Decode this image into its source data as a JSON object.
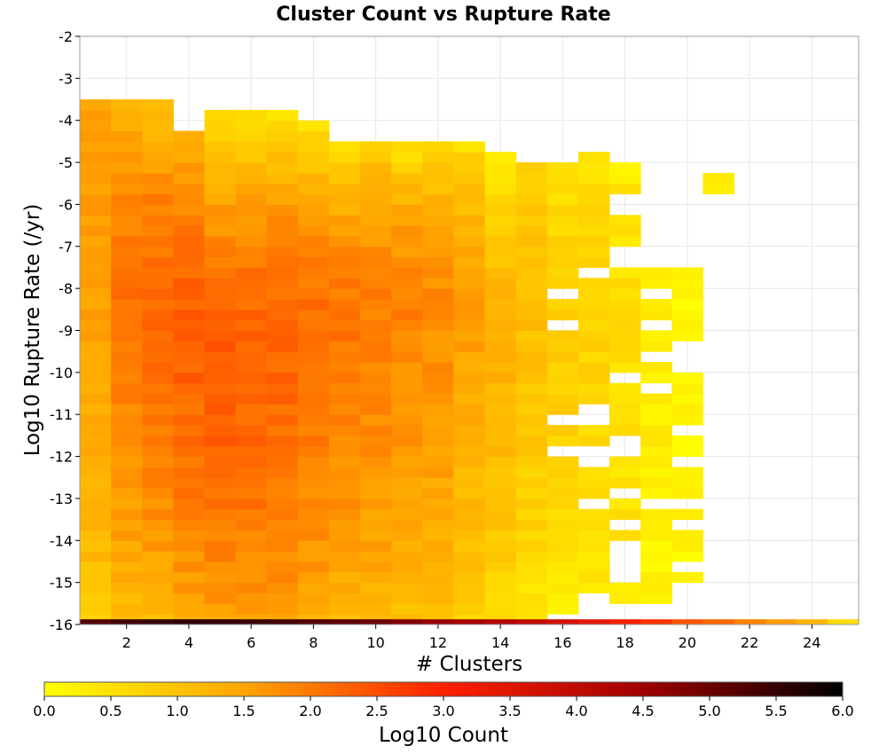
{
  "chart_data": {
    "type": "heatmap",
    "title": "Cluster Count vs Rupture Rate",
    "xlabel": "# Clusters",
    "ylabel": "Log10 Rupture Rate (/yr)",
    "xlim": [
      0.5,
      25.5
    ],
    "ylim": [
      -16,
      -2
    ],
    "x_ticks": [
      2,
      4,
      6,
      8,
      10,
      12,
      14,
      16,
      18,
      20,
      22,
      24
    ],
    "y_ticks": [
      -2,
      -3,
      -4,
      -5,
      -6,
      -7,
      -8,
      -9,
      -10,
      -11,
      -12,
      -13,
      -14,
      -15,
      -16
    ],
    "grid": true,
    "x_bins": [
      1,
      2,
      3,
      4,
      5,
      6,
      7,
      8,
      9,
      10,
      11,
      12,
      13,
      14,
      15,
      16,
      17,
      18,
      19,
      20,
      21,
      22,
      23,
      24,
      25
    ],
    "y_bin_width": 0.25,
    "z_range": [
      0.0,
      6.0
    ],
    "colorbar": {
      "label": "Log10 Count",
      "ticks": [
        "0.0",
        "0.5",
        "1.0",
        "1.5",
        "2.0",
        "2.5",
        "3.0",
        "3.5",
        "4.0",
        "4.5",
        "5.0",
        "5.5",
        "6.0"
      ],
      "stops": [
        "#ffff00",
        "#ffa500",
        "#ff2000",
        "#a00000",
        "#000000"
      ],
      "placement": "bottom"
    },
    "columns": [
      {
        "cluster_count": 1,
        "log_rate_min": -16.0,
        "log_rate_max": -3.5,
        "low_log_count": 0.8,
        "high_log_count": 1.55,
        "peak_log_count": 1.6,
        "peak_log_rate": -6.0
      },
      {
        "cluster_count": 2,
        "log_rate_min": -16.0,
        "log_rate_max": -3.5,
        "low_log_count": 0.9,
        "high_log_count": 1.3,
        "peak_log_count": 2.05,
        "peak_log_rate": -8.5
      },
      {
        "cluster_count": 3,
        "log_rate_min": -16.0,
        "log_rate_max": -3.5,
        "low_log_count": 1.0,
        "high_log_count": 0.9,
        "peak_log_count": 2.2,
        "peak_log_rate": -8.5
      },
      {
        "cluster_count": 4,
        "log_rate_min": -16.0,
        "log_rate_max": -4.25,
        "low_log_count": 1.2,
        "high_log_count": 1.2,
        "peak_log_count": 2.3,
        "peak_log_rate": -9.5
      },
      {
        "cluster_count": 5,
        "log_rate_min": -16.0,
        "log_rate_max": -3.75,
        "low_log_count": 1.3,
        "high_log_count": 0.5,
        "peak_log_count": 2.35,
        "peak_log_rate": -10.5
      },
      {
        "cluster_count": 6,
        "log_rate_min": -16.0,
        "log_rate_max": -3.75,
        "low_log_count": 1.35,
        "high_log_count": 0.4,
        "peak_log_count": 2.3,
        "peak_log_rate": -10.0
      },
      {
        "cluster_count": 7,
        "log_rate_min": -16.0,
        "log_rate_max": -3.75,
        "low_log_count": 1.3,
        "high_log_count": 0.4,
        "peak_log_count": 2.25,
        "peak_log_rate": -9.5
      },
      {
        "cluster_count": 8,
        "log_rate_min": -16.0,
        "log_rate_max": -4.0,
        "low_log_count": 1.2,
        "high_log_count": 0.4,
        "peak_log_count": 2.15,
        "peak_log_rate": -9.5
      },
      {
        "cluster_count": 9,
        "log_rate_min": -16.0,
        "log_rate_max": -4.5,
        "low_log_count": 1.0,
        "high_log_count": 0.4,
        "peak_log_count": 2.05,
        "peak_log_rate": -9.0
      },
      {
        "cluster_count": 10,
        "log_rate_min": -16.0,
        "log_rate_max": -4.5,
        "low_log_count": 1.0,
        "high_log_count": 0.8,
        "peak_log_count": 1.95,
        "peak_log_rate": -9.0
      },
      {
        "cluster_count": 11,
        "log_rate_min": -16.0,
        "log_rate_max": -4.5,
        "low_log_count": 0.9,
        "high_log_count": 0.4,
        "peak_log_count": 1.9,
        "peak_log_rate": -8.5
      },
      {
        "cluster_count": 12,
        "log_rate_min": -16.0,
        "log_rate_max": -4.5,
        "low_log_count": 0.8,
        "high_log_count": 0.5,
        "peak_log_count": 1.8,
        "peak_log_rate": -8.5
      },
      {
        "cluster_count": 13,
        "log_rate_min": -16.0,
        "log_rate_max": -4.5,
        "low_log_count": 0.6,
        "high_log_count": 0.5,
        "peak_log_count": 1.55,
        "peak_log_rate": -8.5
      },
      {
        "cluster_count": 14,
        "log_rate_min": -16.0,
        "log_rate_max": -4.75,
        "low_log_count": 0.4,
        "high_log_count": 0.1,
        "peak_log_count": 1.3,
        "peak_log_rate": -9.5
      },
      {
        "cluster_count": 15,
        "log_rate_min": -16.0,
        "log_rate_max": -5.0,
        "low_log_count": 0.2,
        "high_log_count": 0.7,
        "peak_log_count": 1.1,
        "peak_log_rate": -8.5
      },
      {
        "cluster_count": 16,
        "log_rate_min": -15.75,
        "log_rate_max": -4.75,
        "low_log_count": 0.1,
        "high_log_count": 0.4,
        "peak_log_count": 0.85,
        "peak_log_rate": -9.5
      },
      {
        "cluster_count": 17,
        "log_rate_min": -15.5,
        "log_rate_max": -4.75,
        "low_log_count": 0.2,
        "high_log_count": 0.5,
        "peak_log_count": 0.75,
        "peak_log_rate": -9.0
      },
      {
        "cluster_count": 18,
        "log_rate_min": -15.5,
        "log_rate_max": -5.0,
        "low_log_count": 0.3,
        "high_log_count": 0.3,
        "peak_log_count": 0.55,
        "peak_log_rate": -9.5
      },
      {
        "cluster_count": 19,
        "log_rate_min": -15.5,
        "log_rate_max": -7.5,
        "low_log_count": 0.1,
        "high_log_count": 0.2,
        "peak_log_count": 0.3,
        "peak_log_rate": -11.0
      },
      {
        "cluster_count": 20,
        "log_rate_min": -15.25,
        "log_rate_max": -7.25,
        "low_log_count": 0.15,
        "high_log_count": 0.15,
        "peak_log_count": 0.2,
        "peak_log_rate": -12.0
      },
      {
        "cluster_count": 21,
        "log_rate_min": -5.75,
        "log_rate_max": -5.25,
        "low_log_count": 0.2,
        "high_log_count": 0.2,
        "peak_log_count": 0.2,
        "peak_log_rate": -5.5
      }
    ],
    "bottom_row": {
      "log_rate_bin": [
        -16.0,
        -15.75
      ],
      "log_counts": [
        5.2,
        5.4,
        5.5,
        5.55,
        5.5,
        5.45,
        5.35,
        5.2,
        5.1,
        5.0,
        4.8,
        4.6,
        4.4,
        4.2,
        4.0,
        3.7,
        3.4,
        3.1,
        2.8,
        2.4,
        2.2,
        1.9,
        1.6,
        1.2,
        0.6
      ]
    }
  }
}
